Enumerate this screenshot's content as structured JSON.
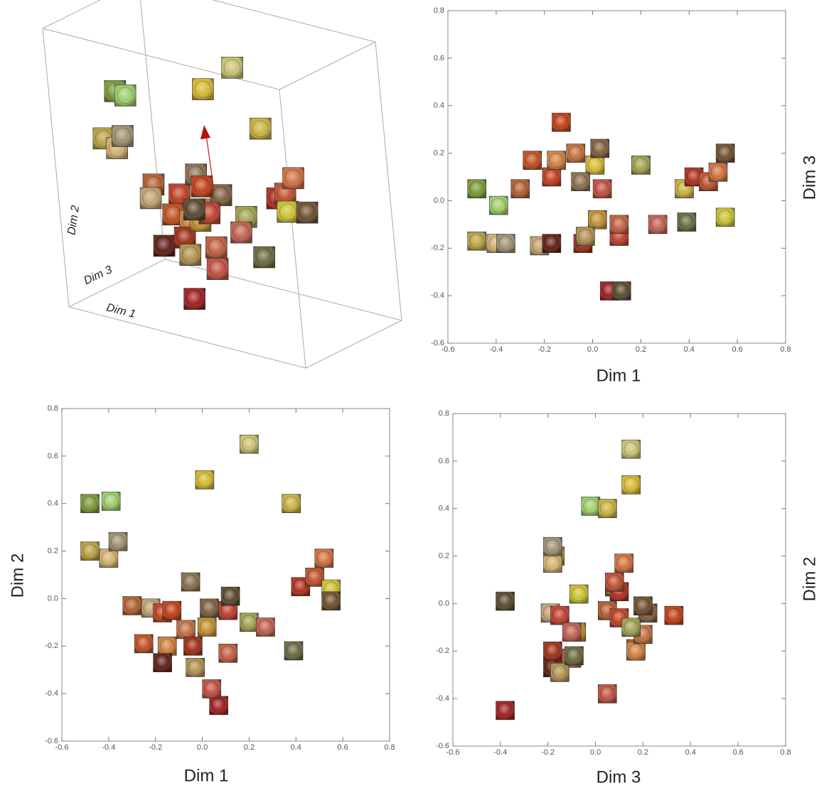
{
  "chart_data": [
    {
      "type": "scatter3d",
      "xlabel": "Dim 1",
      "ylabel": "Dim 2",
      "zlabel": "Dim 3",
      "xlim": [
        -0.6,
        0.8
      ],
      "ylim": [
        -0.6,
        0.8
      ],
      "zlim": [
        -0.6,
        0.8
      ],
      "x": [
        -0.48,
        -0.39,
        0.2,
        0.01,
        0.38,
        -0.48,
        -0.4,
        -0.36,
        -0.3,
        -0.22,
        -0.17,
        -0.25,
        -0.15,
        -0.17,
        -0.07,
        -0.04,
        -0.05,
        0.03,
        0.02,
        0.11,
        0.11,
        0.07,
        0.04,
        -0.03,
        0.2,
        0.27,
        0.39,
        0.42,
        0.48,
        0.52,
        0.55,
        0.55,
        -0.13,
        0.12
      ],
      "y": [
        0.4,
        0.41,
        0.65,
        0.5,
        0.4,
        0.2,
        0.17,
        0.24,
        -0.03,
        -0.04,
        -0.06,
        -0.19,
        -0.2,
        -0.27,
        -0.13,
        -0.2,
        0.07,
        -0.04,
        -0.12,
        -0.05,
        -0.23,
        -0.45,
        -0.38,
        -0.29,
        -0.1,
        -0.12,
        -0.22,
        0.05,
        0.09,
        0.17,
        0.04,
        -0.01,
        -0.05,
        0.01
      ],
      "z": [
        0.05,
        -0.02,
        0.15,
        0.15,
        0.05,
        -0.17,
        -0.18,
        -0.18,
        0.05,
        -0.19,
        0.1,
        0.17,
        0.17,
        -0.18,
        0.2,
        -0.18,
        0.08,
        0.22,
        -0.08,
        -0.15,
        -0.1,
        -0.38,
        0.05,
        -0.15,
        0.15,
        -0.1,
        -0.09,
        0.1,
        0.08,
        0.12,
        -0.07,
        0.2,
        0.33,
        -0.38
      ],
      "colors": [
        "#7a9a3a",
        "#9ccc6a",
        "#c8c070",
        "#d4b830",
        "#c8b040",
        "#b8a040",
        "#d0b070",
        "#a09070",
        "#b06030",
        "#c0a070",
        "#c04020",
        "#c05020",
        "#d08040",
        "#602018",
        "#c07040",
        "#a03018",
        "#8a7050",
        "#806040",
        "#c09030",
        "#c04030",
        "#c06040",
        "#a02020",
        "#c05040",
        "#b09050",
        "#a0a050",
        "#c06050",
        "#6a6a40",
        "#b03020",
        "#c05030",
        "#d07040",
        "#c8c030",
        "#705030",
        "#c04018",
        "#5a4a30"
      ]
    },
    {
      "type": "scatter",
      "xlabel": "Dim 1",
      "ylabel": "Dim 3",
      "xlim": [
        -0.6,
        0.8
      ],
      "ylim": [
        -0.6,
        0.8
      ],
      "xticks": [
        -0.6,
        -0.4,
        -0.2,
        {
          "value": 0,
          "label": "0.0"
        },
        0.2,
        0.4,
        0.6,
        0.8
      ],
      "yticks": [
        -0.6,
        -0.4,
        -0.2,
        {
          "value": 0,
          "label": "0.0"
        },
        0.2,
        0.4,
        0.6,
        0.8
      ],
      "x": [
        -0.48,
        -0.39,
        0.2,
        0.01,
        0.38,
        -0.48,
        -0.4,
        -0.36,
        -0.3,
        -0.22,
        -0.17,
        -0.25,
        -0.15,
        -0.17,
        -0.07,
        -0.04,
        -0.05,
        0.03,
        0.02,
        0.11,
        0.11,
        0.07,
        0.04,
        -0.03,
        0.2,
        0.27,
        0.39,
        0.42,
        0.48,
        0.52,
        0.55,
        0.55,
        -0.13,
        0.12
      ],
      "y": [
        0.05,
        -0.02,
        0.15,
        0.15,
        0.05,
        -0.17,
        -0.18,
        -0.18,
        0.05,
        -0.19,
        0.1,
        0.17,
        0.17,
        -0.18,
        0.2,
        -0.18,
        0.08,
        0.22,
        -0.08,
        -0.15,
        -0.1,
        -0.38,
        0.05,
        -0.15,
        0.15,
        -0.1,
        -0.09,
        0.1,
        0.08,
        0.12,
        -0.07,
        0.2,
        0.33,
        -0.38
      ],
      "colors": [
        "#7a9a3a",
        "#9ccc6a",
        "#c8c070",
        "#d4b830",
        "#c8b040",
        "#b8a040",
        "#d0b070",
        "#a09070",
        "#b06030",
        "#c0a070",
        "#c04020",
        "#c05020",
        "#d08040",
        "#602018",
        "#c07040",
        "#a03018",
        "#8a7050",
        "#806040",
        "#c09030",
        "#c04030",
        "#c06040",
        "#a02020",
        "#c05040",
        "#b09050",
        "#a0a050",
        "#c06050",
        "#6a6a40",
        "#b03020",
        "#c05030",
        "#d07040",
        "#c8c030",
        "#705030",
        "#c04018",
        "#5a4a30"
      ]
    },
    {
      "type": "scatter",
      "xlabel": "Dim 1",
      "ylabel": "Dim 2",
      "xlim": [
        -0.6,
        0.8
      ],
      "ylim": [
        -0.6,
        0.8
      ],
      "xticks": [
        -0.6,
        -0.4,
        -0.2,
        {
          "value": 0,
          "label": "0.0"
        },
        0.2,
        0.4,
        0.6,
        0.8
      ],
      "yticks": [
        -0.6,
        -0.4,
        -0.2,
        {
          "value": 0,
          "label": "0.0"
        },
        0.2,
        0.4,
        0.6,
        0.8
      ],
      "x": [
        -0.48,
        -0.39,
        0.2,
        0.01,
        0.38,
        -0.48,
        -0.4,
        -0.36,
        -0.3,
        -0.22,
        -0.17,
        -0.25,
        -0.15,
        -0.17,
        -0.07,
        -0.04,
        -0.05,
        0.03,
        0.02,
        0.11,
        0.11,
        0.07,
        0.04,
        -0.03,
        0.2,
        0.27,
        0.39,
        0.42,
        0.48,
        0.52,
        0.55,
        0.55,
        -0.13,
        0.12
      ],
      "y": [
        0.4,
        0.41,
        0.65,
        0.5,
        0.4,
        0.2,
        0.17,
        0.24,
        -0.03,
        -0.04,
        -0.06,
        -0.19,
        -0.2,
        -0.27,
        -0.13,
        -0.2,
        0.07,
        -0.04,
        -0.12,
        -0.05,
        -0.23,
        -0.45,
        -0.38,
        -0.29,
        -0.1,
        -0.12,
        -0.22,
        0.05,
        0.09,
        0.17,
        0.04,
        -0.01,
        -0.05,
        0.01
      ],
      "colors": [
        "#7a9a3a",
        "#9ccc6a",
        "#c8c070",
        "#d4b830",
        "#c8b040",
        "#b8a040",
        "#d0b070",
        "#a09070",
        "#b06030",
        "#c0a070",
        "#c04020",
        "#c05020",
        "#d08040",
        "#602018",
        "#c07040",
        "#a03018",
        "#8a7050",
        "#806040",
        "#c09030",
        "#c04030",
        "#c06040",
        "#a02020",
        "#c05040",
        "#b09050",
        "#a0a050",
        "#c06050",
        "#6a6a40",
        "#b03020",
        "#c05030",
        "#d07040",
        "#c8c030",
        "#705030",
        "#c04018",
        "#5a4a30"
      ]
    },
    {
      "type": "scatter",
      "xlabel": "Dim 3",
      "ylabel": "Dim 2",
      "xlim": [
        -0.6,
        0.8
      ],
      "ylim": [
        -0.6,
        0.8
      ],
      "xticks": [
        -0.6,
        -0.4,
        -0.2,
        {
          "value": 0,
          "label": "0.0"
        },
        0.2,
        0.4,
        0.6,
        0.8
      ],
      "yticks": [
        -0.6,
        -0.4,
        -0.2,
        {
          "value": 0,
          "label": "0.0"
        },
        0.2,
        0.4,
        0.6,
        0.8
      ],
      "x": [
        0.05,
        -0.02,
        0.15,
        0.15,
        0.05,
        -0.17,
        -0.18,
        -0.18,
        0.05,
        -0.19,
        0.1,
        0.17,
        0.17,
        -0.18,
        0.2,
        -0.18,
        0.08,
        0.22,
        -0.08,
        -0.15,
        -0.1,
        -0.38,
        0.05,
        -0.15,
        0.15,
        -0.1,
        -0.09,
        0.1,
        0.08,
        0.12,
        -0.07,
        0.2,
        0.33,
        -0.38
      ],
      "y": [
        0.4,
        0.41,
        0.65,
        0.5,
        0.4,
        0.2,
        0.17,
        0.24,
        -0.03,
        -0.04,
        -0.06,
        -0.19,
        -0.2,
        -0.27,
        -0.13,
        -0.2,
        0.07,
        -0.04,
        -0.12,
        -0.05,
        -0.23,
        -0.45,
        -0.38,
        -0.29,
        -0.1,
        -0.12,
        -0.22,
        0.05,
        0.09,
        0.17,
        0.04,
        -0.01,
        -0.05,
        0.01
      ],
      "colors": [
        "#7a9a3a",
        "#9ccc6a",
        "#c8c070",
        "#d4b830",
        "#c8b040",
        "#b8a040",
        "#d0b070",
        "#a09070",
        "#b06030",
        "#c0a070",
        "#c04020",
        "#c05020",
        "#d08040",
        "#602018",
        "#c07040",
        "#a03018",
        "#8a7050",
        "#806040",
        "#c09030",
        "#c04030",
        "#c06040",
        "#a02020",
        "#c05040",
        "#b09050",
        "#a0a050",
        "#c06050",
        "#6a6a40",
        "#b03020",
        "#c05030",
        "#d07040",
        "#c8c030",
        "#705030",
        "#c04018",
        "#5a4a30"
      ]
    }
  ]
}
